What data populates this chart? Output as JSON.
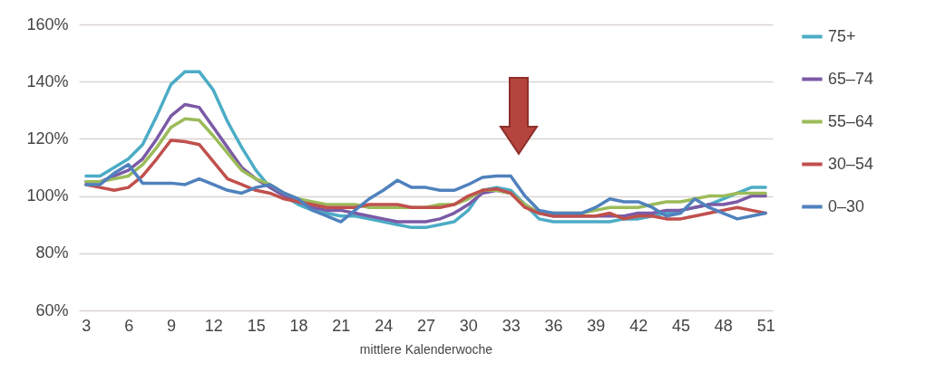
{
  "chart_data": {
    "type": "line",
    "xlabel": "mittlere Kalenderwoche",
    "x": [
      3,
      4,
      5,
      6,
      7,
      8,
      9,
      10,
      11,
      12,
      13,
      14,
      15,
      16,
      17,
      18,
      19,
      20,
      21,
      22,
      23,
      24,
      25,
      26,
      27,
      28,
      29,
      30,
      31,
      32,
      33,
      34,
      35,
      36,
      37,
      38,
      39,
      40,
      41,
      42,
      43,
      44,
      45,
      46,
      47,
      48,
      49,
      50,
      51
    ],
    "xlim": [
      2.5,
      51.5
    ],
    "xticks": [
      3,
      6,
      9,
      12,
      15,
      18,
      21,
      24,
      27,
      30,
      33,
      36,
      39,
      42,
      45,
      48,
      51
    ],
    "ylim": [
      60,
      160
    ],
    "yticks": [
      {
        "value": 60,
        "label": "60%"
      },
      {
        "value": 80,
        "label": "80%"
      },
      {
        "value": 100,
        "label": "100%"
      },
      {
        "value": 120,
        "label": "120%"
      },
      {
        "value": 140,
        "label": "140%"
      },
      {
        "value": 160,
        "label": "160%"
      }
    ],
    "grid": "y",
    "legend": "right",
    "line_style": "solid",
    "series": [
      {
        "name": "75+",
        "color": "#4bacc6",
        "values": [
          107,
          107,
          110,
          113,
          118,
          128,
          139,
          143.5,
          143.5,
          137,
          126,
          117,
          109,
          103,
          100,
          97,
          95,
          94,
          93,
          93,
          92,
          91,
          90,
          89,
          89,
          90,
          91,
          95,
          102,
          103,
          102,
          97,
          92,
          91,
          91,
          91,
          91,
          91,
          92,
          92,
          93,
          94,
          95,
          96,
          97,
          99,
          101,
          103,
          103
        ]
      },
      {
        "name": "65–74",
        "color": "#7b5aa6",
        "values": [
          105,
          105,
          107,
          109,
          113,
          120,
          128,
          132,
          131,
          124,
          117,
          110,
          106,
          103,
          100,
          98,
          96,
          95,
          95,
          94,
          93,
          92,
          91,
          91,
          91,
          92,
          94,
          97,
          101,
          102,
          101,
          97,
          94,
          93,
          93,
          93,
          93,
          93,
          93,
          94,
          94,
          95,
          95,
          96,
          97,
          97,
          98,
          100,
          100
        ]
      },
      {
        "name": "55–64",
        "color": "#9bbb59",
        "values": [
          105,
          105,
          106,
          107,
          111,
          117,
          124,
          127,
          126.5,
          121,
          115,
          109,
          106,
          104,
          101,
          99,
          98,
          97,
          97,
          97,
          96,
          96,
          96,
          96,
          96,
          97,
          97,
          99,
          102,
          102,
          101,
          97,
          94,
          94,
          94,
          94,
          95,
          96,
          96,
          96,
          97,
          98,
          98,
          99,
          100,
          100,
          101,
          101,
          101
        ]
      },
      {
        "name": "30–54",
        "color": "#c0504d",
        "values": [
          104,
          103,
          102,
          103,
          107,
          113,
          119.5,
          119,
          118,
          112,
          106,
          104,
          102,
          101,
          99,
          98,
          97,
          96,
          96,
          96,
          97,
          97,
          97,
          96,
          96,
          96,
          97,
          100,
          102,
          102.5,
          101,
          96,
          94,
          93,
          93,
          93,
          93,
          94,
          92,
          93,
          93,
          92,
          92,
          93,
          94,
          95,
          96,
          95,
          94
        ]
      },
      {
        "name": "0–30",
        "color": "#4f81bd",
        "values": [
          104,
          104,
          108,
          111,
          104.5,
          104.5,
          104.5,
          104,
          106,
          104,
          102,
          101,
          103,
          104,
          101,
          99,
          95,
          93,
          91,
          95,
          99,
          102,
          105.5,
          103,
          103,
          102,
          102,
          104,
          106.5,
          107,
          107,
          100,
          95,
          94,
          94,
          94,
          96,
          99,
          98,
          98,
          96,
          93,
          94,
          99,
          96,
          94,
          92,
          93,
          94
        ]
      }
    ]
  }
}
